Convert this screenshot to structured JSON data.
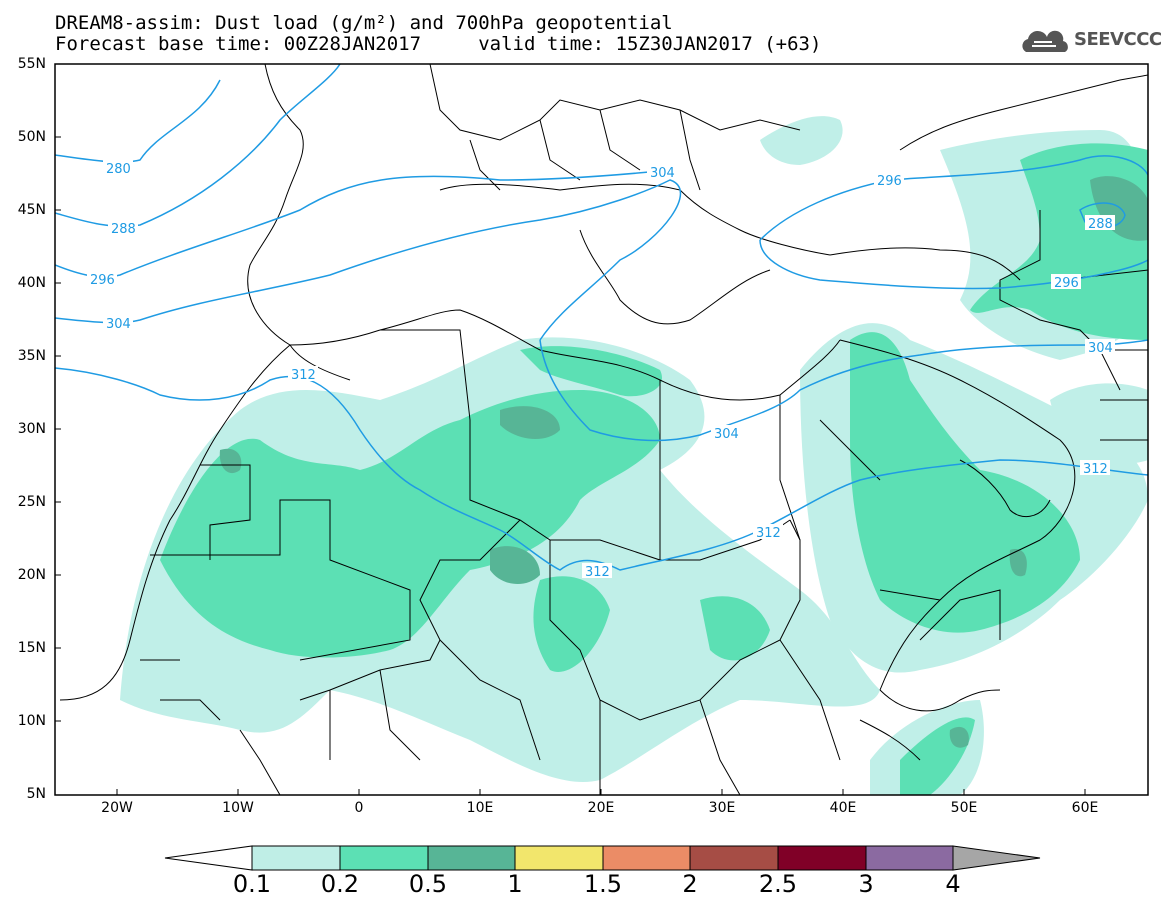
{
  "header": {
    "line1": "DREAM8-assim: Dust load (g/m²) and 700hPa geopotential",
    "line2": "Forecast base time: 00Z28JAN2017     valid time: 15Z30JAN2017 (+63)"
  },
  "logo": {
    "text": "SEEVCCC",
    "icon": "cloud-icon"
  },
  "axes": {
    "lat_labels": [
      "55N",
      "50N",
      "45N",
      "40N",
      "35N",
      "30N",
      "25N",
      "20N",
      "15N",
      "10N",
      "5N"
    ],
    "lon_labels": [
      "20W",
      "10W",
      "0",
      "10E",
      "20E",
      "30E",
      "40E",
      "50E",
      "60E"
    ]
  },
  "contours": {
    "labels": [
      "280",
      "288",
      "296",
      "304",
      "312",
      "304",
      "296",
      "288",
      "296",
      "304",
      "304",
      "312",
      "312",
      "312"
    ]
  },
  "colorbar": {
    "labels": [
      "0.1",
      "0.2",
      "0.5",
      "1",
      "1.5",
      "2",
      "2.5",
      "3",
      "4"
    ],
    "colors": [
      "#ffffff",
      "#bfeee6",
      "#5ce0b4",
      "#57b596",
      "#f2e66c",
      "#eb8c66",
      "#a64d45",
      "#800027",
      "#8b6aa1",
      "#a6a6a6"
    ]
  },
  "palette": {
    "contour_line": "#1f9be3",
    "border_line": "#000000",
    "dust_light": "#c0efe8",
    "dust_mid": "#5ce0b4",
    "dust_dark": "#57b596"
  }
}
